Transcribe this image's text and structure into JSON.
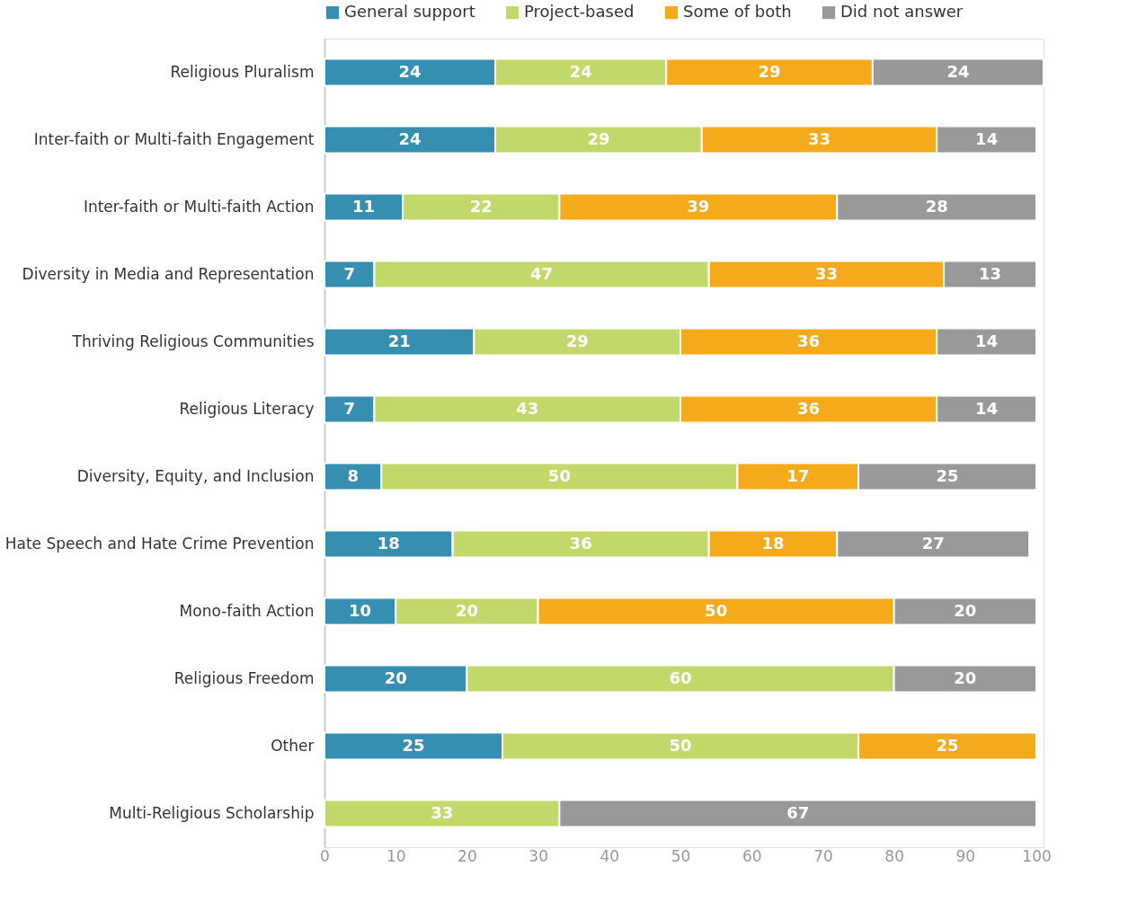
{
  "chart_data": {
    "type": "bar",
    "orientation": "horizontal",
    "stacked": true,
    "data_labels": true,
    "grid": false,
    "legend": "top",
    "categories": [
      "Religious Pluralism",
      "Inter-faith or Multi-faith Engagement",
      "Inter-faith or Multi-faith Action",
      "Diversity in Media and Representation",
      "Thriving Religious Communities",
      "Religious Literacy",
      "Diversity, Equity, and Inclusion",
      "Hate Speech and Hate Crime Prevention",
      "Mono-faith Action",
      "Religious Freedom",
      "Other",
      "Multi-Religious Scholarship"
    ],
    "series": [
      {
        "name": "General support",
        "color": "#368fb0",
        "values": [
          24,
          24,
          11,
          7,
          21,
          7,
          8,
          18,
          10,
          20,
          25,
          null
        ]
      },
      {
        "name": "Project-based",
        "color": "#c2d86b",
        "values": [
          24,
          29,
          22,
          47,
          29,
          43,
          50,
          36,
          20,
          60,
          50,
          33
        ]
      },
      {
        "name": "Some of both",
        "color": "#f5aa1c",
        "values": [
          29,
          33,
          39,
          33,
          36,
          36,
          17,
          18,
          50,
          null,
          25,
          null
        ]
      },
      {
        "name": "Did not answer",
        "color": "#999999",
        "values": [
          24,
          14,
          28,
          13,
          14,
          14,
          25,
          27,
          20,
          20,
          null,
          67
        ]
      }
    ],
    "xlim": [
      0,
      101
    ],
    "xticks": [
      0,
      10,
      20,
      30,
      40,
      50,
      60,
      70,
      80,
      90,
      100
    ]
  }
}
